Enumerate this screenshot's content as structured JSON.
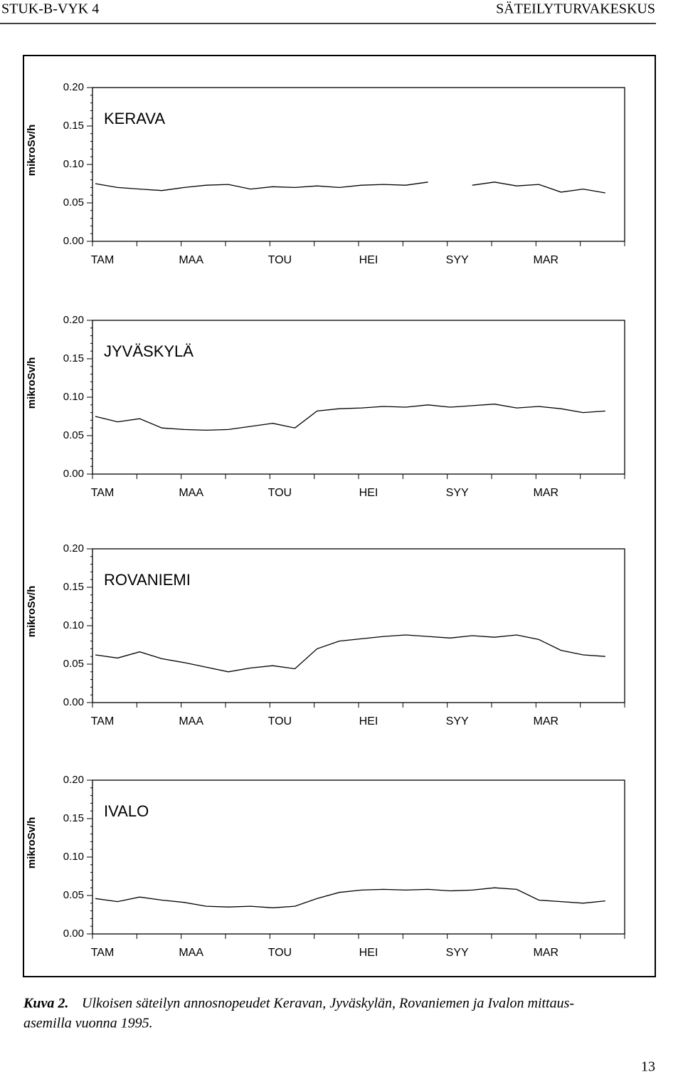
{
  "header": {
    "left": "STUK-B-VYK 4",
    "right": "SÄTEILYTURVAKESKUS"
  },
  "chart_data": [
    {
      "type": "line",
      "title": "KERAVA",
      "y_label": "mikroSv/h",
      "categories": [
        "TAM",
        null,
        null,
        null,
        "MAA",
        null,
        null,
        null,
        "TOU",
        null,
        null,
        null,
        "HEI",
        null,
        null,
        null,
        "SYY",
        null,
        null,
        null,
        "MAR",
        null,
        null,
        null
      ],
      "series": [
        {
          "values": [
            0.075,
            0.07,
            0.068,
            0.066,
            0.07,
            0.073,
            0.074,
            0.068,
            0.071,
            0.07,
            0.072,
            0.07,
            0.073,
            0.074,
            0.073,
            0.077,
            null,
            0.073,
            0.077,
            0.072,
            0.074,
            0.064,
            0.068,
            0.063
          ]
        }
      ],
      "ylim": [
        0,
        0.2
      ],
      "yticks": [
        {
          "value": 0,
          "label": "0.00"
        },
        {
          "value": 0.05,
          "label": "0.05"
        },
        {
          "value": 0.1,
          "label": "0.10"
        },
        {
          "value": 0.15,
          "label": "0.15"
        },
        {
          "value": 0.2,
          "label": "0.20"
        }
      ],
      "color": "#000000"
    },
    {
      "type": "line",
      "title": "JYVÄSKYLÄ",
      "y_label": "mikroSv/h",
      "categories": [
        "TAM",
        null,
        null,
        null,
        "MAA",
        null,
        null,
        null,
        "TOU",
        null,
        null,
        null,
        "HEI",
        null,
        null,
        null,
        "SYY",
        null,
        null,
        null,
        "MAR",
        null,
        null,
        null
      ],
      "series": [
        {
          "values": [
            0.075,
            0.068,
            0.072,
            0.06,
            0.058,
            0.057,
            0.058,
            0.062,
            0.066,
            0.06,
            0.082,
            0.085,
            0.086,
            0.088,
            0.087,
            0.09,
            0.087,
            0.089,
            0.091,
            0.086,
            0.088,
            0.085,
            0.08,
            0.082
          ]
        }
      ],
      "ylim": [
        0,
        0.2
      ],
      "yticks": [
        {
          "value": 0,
          "label": "0.00"
        },
        {
          "value": 0.05,
          "label": "0.05"
        },
        {
          "value": 0.1,
          "label": "0.10"
        },
        {
          "value": 0.15,
          "label": "0.15"
        },
        {
          "value": 0.2,
          "label": "0.20"
        }
      ],
      "color": "#000000"
    },
    {
      "type": "line",
      "title": "ROVANIEMI",
      "y_label": "mikroSv/h",
      "categories": [
        "TAM",
        null,
        null,
        null,
        "MAA",
        null,
        null,
        null,
        "TOU",
        null,
        null,
        null,
        "HEI",
        null,
        null,
        null,
        "SYY",
        null,
        null,
        null,
        "MAR",
        null,
        null,
        null
      ],
      "series": [
        {
          "values": [
            0.062,
            0.058,
            0.066,
            0.057,
            0.052,
            0.046,
            0.04,
            0.045,
            0.048,
            0.044,
            0.07,
            0.08,
            0.083,
            0.086,
            0.088,
            0.086,
            0.084,
            0.087,
            0.085,
            0.088,
            0.082,
            0.068,
            0.062,
            0.06
          ]
        }
      ],
      "ylim": [
        0,
        0.2
      ],
      "yticks": [
        {
          "value": 0,
          "label": "0.00"
        },
        {
          "value": 0.05,
          "label": "0.05"
        },
        {
          "value": 0.1,
          "label": "0.10"
        },
        {
          "value": 0.15,
          "label": "0.15"
        },
        {
          "value": 0.2,
          "label": "0.20"
        }
      ],
      "color": "#000000"
    },
    {
      "type": "line",
      "title": "IVALO",
      "y_label": "mikroSv/h",
      "categories": [
        "TAM",
        null,
        null,
        null,
        "MAA",
        null,
        null,
        null,
        "TOU",
        null,
        null,
        null,
        "HEI",
        null,
        null,
        null,
        "SYY",
        null,
        null,
        null,
        "MAR",
        null,
        null,
        null
      ],
      "series": [
        {
          "values": [
            0.046,
            0.042,
            0.048,
            0.044,
            0.041,
            0.036,
            0.035,
            0.036,
            0.034,
            0.036,
            0.046,
            0.054,
            0.057,
            0.058,
            0.057,
            0.058,
            0.056,
            0.057,
            0.06,
            0.058,
            0.044,
            0.042,
            0.04,
            0.043
          ]
        }
      ],
      "ylim": [
        0,
        0.2
      ],
      "yticks": [
        {
          "value": 0,
          "label": "0.00"
        },
        {
          "value": 0.05,
          "label": "0.05"
        },
        {
          "value": 0.1,
          "label": "0.10"
        },
        {
          "value": 0.15,
          "label": "0.15"
        },
        {
          "value": 0.2,
          "label": "0.20"
        }
      ],
      "color": "#000000"
    }
  ],
  "caption": {
    "label": "Kuva 2.",
    "line1": "Ulkoisen säteilyn annosnopeudet Keravan, Jyväskylän, Rovaniemen ja Ivalon mittaus-",
    "line2": "asemilla vuonna 1995."
  },
  "page_number": "13"
}
